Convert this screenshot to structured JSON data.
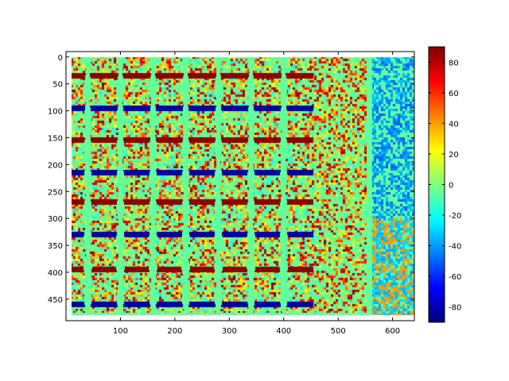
{
  "chart_data": {
    "type": "heatmap",
    "title": "",
    "xlabel": "",
    "ylabel": "",
    "xlim": [
      0,
      640
    ],
    "ylim": [
      490,
      -10
    ],
    "y_reversed": true,
    "x_ticks": [
      100,
      200,
      300,
      400,
      500,
      600
    ],
    "y_ticks": [
      0,
      50,
      100,
      150,
      200,
      250,
      300,
      350,
      400,
      450
    ],
    "image_extent": {
      "x": [
        10,
        640
      ],
      "y": [
        0,
        480
      ]
    },
    "colormap": "jet",
    "colorbar": {
      "range": [
        -90,
        90
      ],
      "ticks": [
        80,
        60,
        40,
        20,
        0,
        -20,
        -40,
        -60,
        -80
      ]
    },
    "background_value": -5,
    "checkerboard": {
      "x_range": [
        10,
        455
      ],
      "y_range": [
        0,
        475
      ],
      "cell_x_centers": [
        70,
        130,
        190,
        250,
        310,
        370,
        430
      ],
      "cell_y_centers": [
        40,
        95,
        155,
        210,
        265,
        320,
        380,
        440
      ],
      "band_values": [
        88,
        -85
      ],
      "band_y_centers": [
        35,
        95,
        155,
        215,
        270,
        330,
        395,
        460
      ]
    },
    "noise_region": {
      "x_range": [
        455,
        555
      ],
      "y_range": [
        0,
        475
      ]
    },
    "vertical_stripe": {
      "x_range": [
        553,
        562
      ],
      "y_range": [
        0,
        480
      ],
      "value": -5
    },
    "right_region": {
      "x_range": [
        562,
        640
      ],
      "y_range": [
        0,
        480
      ],
      "upper_y_range": [
        0,
        300
      ],
      "upper_values": [
        -40,
        -5
      ],
      "lower_values": [
        -40,
        40
      ]
    }
  }
}
